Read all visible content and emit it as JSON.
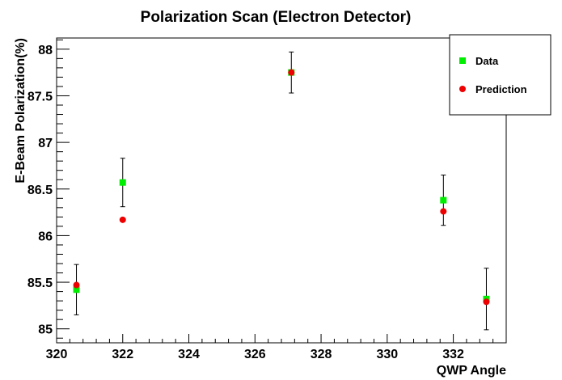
{
  "chart_data": {
    "type": "scatter",
    "title": "Polarization Scan (Electron Detector)",
    "xlabel": "QWP Angle",
    "ylabel": "E-Beam Polarization(%)",
    "xlim": [
      320,
      333.6
    ],
    "ylim": [
      84.85,
      88.12
    ],
    "x_ticks": [
      "320",
      "322",
      "324",
      "326",
      "328",
      "330",
      "332"
    ],
    "y_ticks": [
      "85",
      "85.5",
      "86",
      "86.5",
      "87",
      "87.5",
      "88"
    ],
    "grid": false,
    "legend_position": "top-right",
    "series": [
      {
        "name": "Data",
        "marker": "square",
        "color": "#00ee00",
        "points": [
          {
            "x": 320.6,
            "y": 85.42,
            "err": 0.27
          },
          {
            "x": 322.0,
            "y": 86.57,
            "err": 0.26
          },
          {
            "x": 327.1,
            "y": 87.75,
            "err": 0.22
          },
          {
            "x": 331.7,
            "y": 86.38,
            "err": 0.27
          },
          {
            "x": 333.0,
            "y": 85.32,
            "err": 0.33
          }
        ]
      },
      {
        "name": "Prediction",
        "marker": "circle",
        "color": "#ee0000",
        "points": [
          {
            "x": 320.6,
            "y": 85.47
          },
          {
            "x": 322.0,
            "y": 86.17
          },
          {
            "x": 327.1,
            "y": 87.75
          },
          {
            "x": 331.7,
            "y": 86.26
          },
          {
            "x": 333.0,
            "y": 85.29
          }
        ]
      }
    ]
  }
}
